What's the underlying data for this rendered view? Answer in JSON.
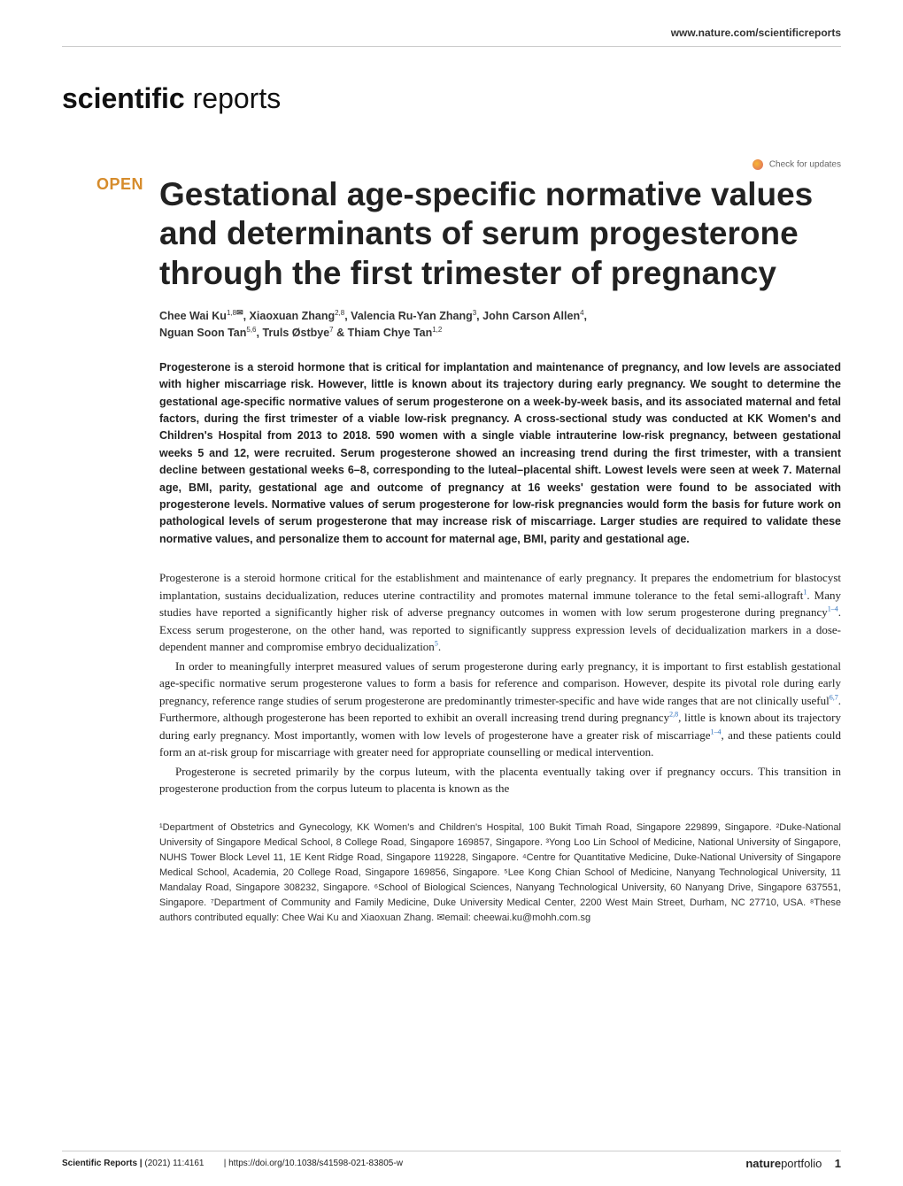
{
  "header": {
    "site_link": "www.nature.com/scientificreports"
  },
  "journal": {
    "name_bold": "scientific",
    "name_light": " reports"
  },
  "check_updates_label": "Check for updates",
  "open_badge": "OPEN",
  "title": "Gestational age-specific normative values and determinants of serum progesterone through the first trimester of pregnancy",
  "authors_line1": "Chee Wai Ku",
  "authors_sup1": "1,8",
  "authors_line1b": ", Xiaoxuan Zhang",
  "authors_sup2": "2,8",
  "authors_line1c": ", Valencia Ru-Yan Zhang",
  "authors_sup3": "3",
  "authors_line1d": ", John Carson Allen",
  "authors_sup4": "4",
  "authors_line1e": ",",
  "authors_line2": "Nguan Soon Tan",
  "authors_sup5": "5,6",
  "authors_line2b": ", Truls Østbye",
  "authors_sup6": "7",
  "authors_line2c": " & Thiam Chye Tan",
  "authors_sup7": "1,2",
  "abstract": "Progesterone is a steroid hormone that is critical for implantation and maintenance of pregnancy, and low levels are associated with higher miscarriage risk. However, little is known about its trajectory during early pregnancy. We sought to determine the gestational age-specific normative values of serum progesterone on a week-by-week basis, and its associated maternal and fetal factors, during the first trimester of a viable low-risk pregnancy. A cross-sectional study was conducted at KK Women's and Children's Hospital from 2013 to 2018. 590 women with a single viable intrauterine low-risk pregnancy, between gestational weeks 5 and 12, were recruited. Serum progesterone showed an increasing trend during the first trimester, with a transient decline between gestational weeks 6–8, corresponding to the luteal–placental shift. Lowest levels were seen at week 7. Maternal age, BMI, parity, gestational age and outcome of pregnancy at 16 weeks' gestation were found to be associated with progesterone levels. Normative values of serum progesterone for low-risk pregnancies would form the basis for future work on pathological levels of serum progesterone that may increase risk of miscarriage. Larger studies are required to validate these normative values, and personalize them to account for maternal age, BMI, parity and gestational age.",
  "body": {
    "p1a": "Progesterone is a steroid hormone critical for the establishment and maintenance of early pregnancy. It prepares the endometrium for blastocyst implantation, sustains decidualization, reduces uterine contractility and promotes maternal immune tolerance to the fetal semi-allograft",
    "p1_ref1": "1",
    "p1b": ". Many studies have reported a significantly higher risk of adverse pregnancy outcomes in women with low serum progesterone during pregnancy",
    "p1_ref2": "1–4",
    "p1c": ". Excess serum progesterone, on the other hand, was reported to significantly suppress expression levels of decidualization markers in a dose-dependent manner and compromise embryo decidualization",
    "p1_ref3": "5",
    "p1d": ".",
    "p2a": "In order to meaningfully interpret measured values of serum progesterone during early pregnancy, it is important to first establish gestational age-specific normative serum progesterone values to form a basis for reference and comparison. However, despite its pivotal role during early pregnancy, reference range studies of serum progesterone are predominantly trimester-specific and have wide ranges that are not clinically useful",
    "p2_ref1": "6,7",
    "p2b": ". Furthermore, although progesterone has been reported to exhibit an overall increasing trend during pregnancy",
    "p2_ref2": "2,8",
    "p2c": ", little is known about its trajectory during early pregnancy. Most importantly, women with low levels of progesterone have a greater risk of miscarriage",
    "p2_ref3": "1–4",
    "p2d": ", and these patients could form an at-risk group for miscarriage with greater need for appropriate counselling or medical intervention.",
    "p3": "Progesterone is secreted primarily by the corpus luteum, with the placenta eventually taking over if pregnancy occurs. This transition in progesterone production from the corpus luteum to placenta is known as the"
  },
  "affiliations": "¹Department of Obstetrics and Gynecology, KK Women's and Children's Hospital, 100 Bukit Timah Road, Singapore 229899, Singapore. ²Duke-National University of Singapore Medical School, 8 College Road, Singapore 169857, Singapore. ³Yong Loo Lin School of Medicine, National University of Singapore, NUHS Tower Block Level 11, 1E Kent Ridge Road, Singapore 119228, Singapore. ⁴Centre for Quantitative Medicine, Duke-National University of Singapore Medical School, Academia, 20 College Road, Singapore 169856, Singapore. ⁵Lee Kong Chian School of Medicine, Nanyang Technological University, 11 Mandalay Road, Singapore 308232, Singapore. ⁶School of Biological Sciences, Nanyang Technological University, 60 Nanyang Drive, Singapore 637551, Singapore. ⁷Department of Community and Family Medicine, Duke University Medical Center, 2200 West Main Street, Durham, NC 27710, USA. ⁸These authors contributed equally: Chee Wai Ku and Xiaoxuan Zhang. ✉email: cheewai.ku@mohh.com.sg",
  "footer": {
    "journal": "Scientific Reports |",
    "citation": "(2021) 11:4161",
    "divider": "|",
    "doi": "https://doi.org/10.1038/s41598-021-83805-w",
    "publisher_bold": "nature",
    "publisher_light": "portfolio",
    "page_num": "1"
  }
}
